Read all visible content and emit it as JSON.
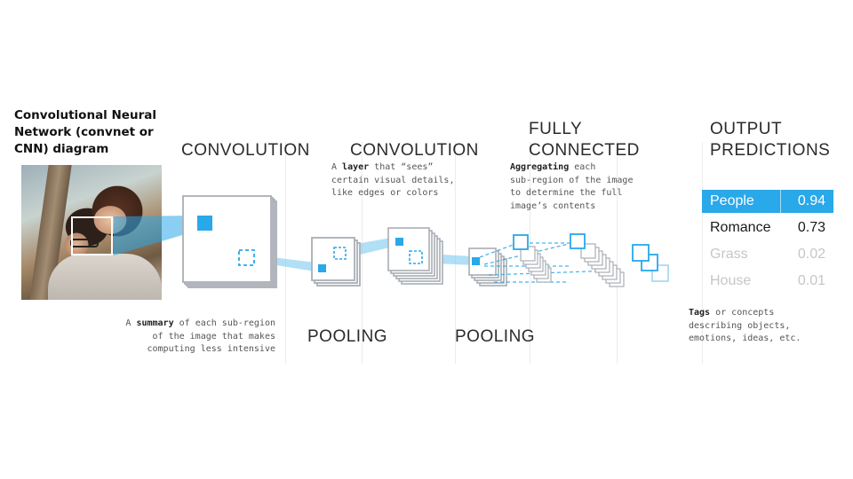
{
  "title": "Convolutional Neural Network (convnet or CNN) diagram",
  "stages": {
    "conv1": "CONVOLUTION",
    "conv2": "CONVOLUTION",
    "pool1": "POOLING",
    "pool2": "POOLING",
    "fc_line1": "FULLY",
    "fc_line2": "CONNECTED",
    "out_line1": "OUTPUT",
    "out_line2": "PREDICTIONS"
  },
  "notes": {
    "layer": {
      "pre": "A ",
      "bold": "layer",
      "post": " that “sees”",
      "line2": "certain visual details,",
      "line3": "like edges or colors"
    },
    "aggregating": {
      "bold": "Aggregating",
      "post": " each",
      "line2": "sub-region of the image",
      "line3": "to determine the full",
      "line4": "image’s contents"
    },
    "summary": {
      "pre": "A ",
      "bold": "summary",
      "post": " of each sub-region",
      "line2": "of the image that makes",
      "line3": "computing less intensive"
    },
    "tags": {
      "bold": "Tags",
      "post": " or concepts",
      "line2": "describing objects,",
      "line3": "emotions, ideas, etc."
    }
  },
  "predictions": [
    {
      "label": "People",
      "value": "0.94"
    },
    {
      "label": "Romance",
      "value": "0.73"
    },
    {
      "label": "Grass",
      "value": "0.02"
    },
    {
      "label": "House",
      "value": "0.01"
    }
  ],
  "colors": {
    "accent": "#29a8ea",
    "beam": "#7cc9f0",
    "box_stroke": "#a9aeb4",
    "highlight_text": "#ffffff",
    "strong_text": "#1a1a1a",
    "faded_text": "#c6c6c6"
  }
}
